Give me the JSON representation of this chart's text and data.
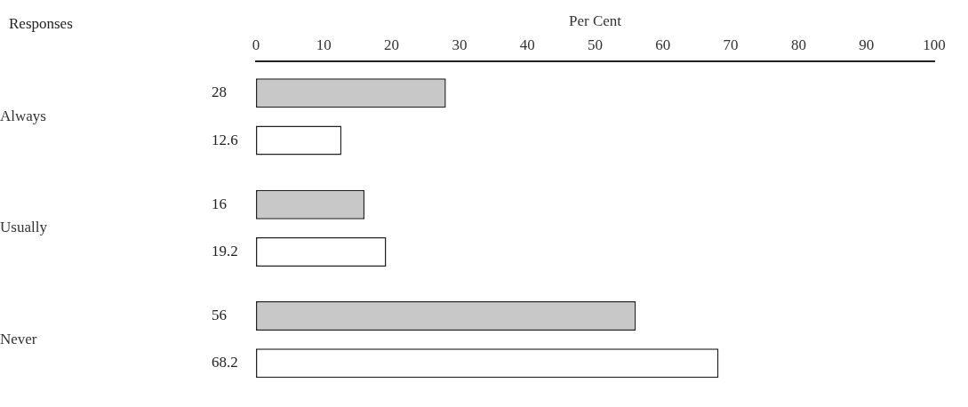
{
  "chart_data": {
    "type": "bar",
    "orientation": "horizontal",
    "x2label": "Per Cent",
    "ylabel": "Responses",
    "categories": [
      "Always",
      "Usually",
      "Never"
    ],
    "series": [
      {
        "color": "#c8c8c8",
        "values": [
          28,
          16,
          56
        ]
      },
      {
        "color": "#ffffff",
        "values": [
          12.6,
          19.2,
          68.2
        ]
      }
    ],
    "x2lim": [
      0,
      100
    ],
    "x2ticks": [
      0,
      10,
      20,
      30,
      40,
      50,
      60,
      70,
      80,
      90,
      100
    ],
    "grid": false,
    "legend": false,
    "data_labels": true
  }
}
